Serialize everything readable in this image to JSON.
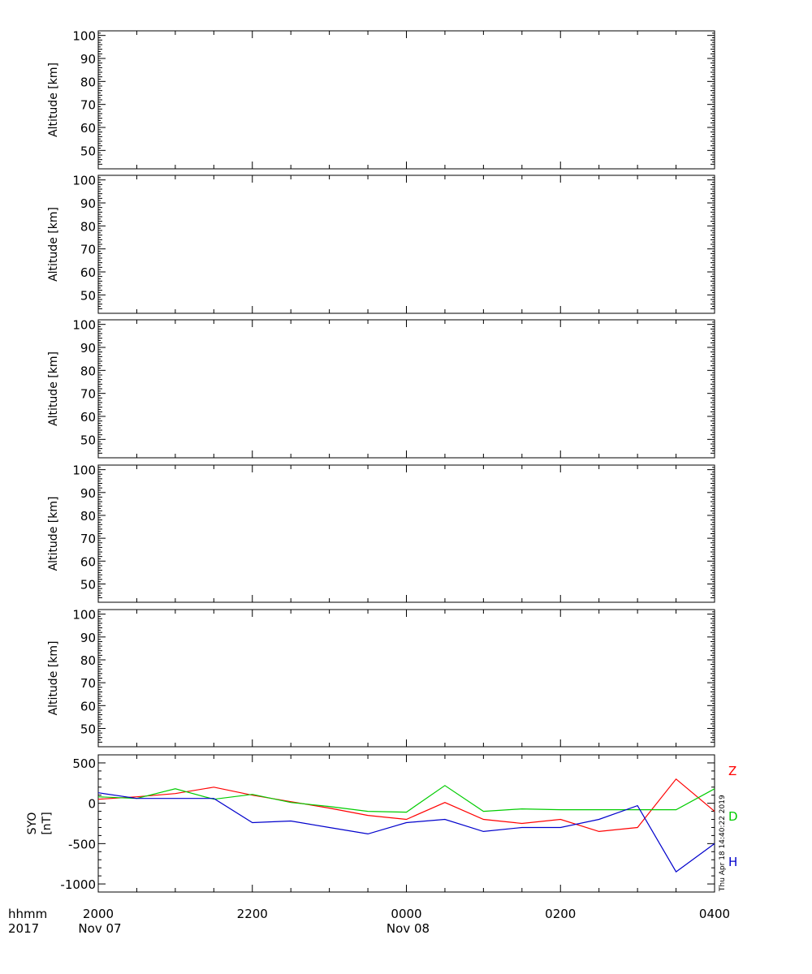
{
  "chart_data": [
    {
      "type": "heatmap",
      "ylabel": "Altitude [km]",
      "ylim": [
        42,
        102
      ],
      "yticks": [
        50,
        60,
        70,
        80,
        90,
        100
      ],
      "grid": false
    },
    {
      "type": "heatmap",
      "ylabel": "Altitude [km]",
      "ylim": [
        42,
        102
      ],
      "yticks": [
        50,
        60,
        70,
        80,
        90,
        100
      ],
      "grid": false
    },
    {
      "type": "heatmap",
      "ylabel": "Altitude [km]",
      "ylim": [
        42,
        102
      ],
      "yticks": [
        50,
        60,
        70,
        80,
        90,
        100
      ],
      "grid": false
    },
    {
      "type": "heatmap",
      "ylabel": "Altitude [km]",
      "ylim": [
        42,
        102
      ],
      "yticks": [
        50,
        60,
        70,
        80,
        90,
        100
      ],
      "grid": false
    },
    {
      "type": "heatmap",
      "ylabel": "Altitude [km]",
      "ylim": [
        42,
        102
      ],
      "yticks": [
        50,
        60,
        70,
        80,
        90,
        100
      ],
      "grid": false
    },
    {
      "type": "line",
      "ylabel": "SYO\n[nT]",
      "ylim": [
        -1100,
        600
      ],
      "yticks": [
        500,
        0,
        -500,
        -1000
      ],
      "grid": false,
      "x": [
        "2000",
        "2030",
        "2100",
        "2130",
        "2200",
        "2230",
        "2300",
        "2330",
        "0000",
        "0030",
        "0100",
        "0130",
        "0200",
        "0230",
        "0300",
        "0330",
        "0400"
      ],
      "series": [
        {
          "name": "Z",
          "color": "#ff0000",
          "values": [
            50,
            80,
            120,
            200,
            100,
            20,
            -60,
            -150,
            -200,
            10,
            -200,
            -250,
            -200,
            -350,
            -300,
            300,
            -100
          ]
        },
        {
          "name": "D",
          "color": "#00cc00",
          "values": [
            80,
            60,
            180,
            50,
            110,
            10,
            -40,
            -100,
            -110,
            220,
            -100,
            -70,
            -80,
            -80,
            -80,
            -80,
            180
          ]
        },
        {
          "name": "H",
          "color": "#0000cc",
          "values": [
            130,
            60,
            60,
            60,
            -240,
            -220,
            -300,
            -380,
            -240,
            -200,
            -350,
            -300,
            -300,
            -200,
            -30,
            -850,
            -500
          ]
        }
      ]
    }
  ],
  "x_axis": {
    "row_label": "hhmm",
    "year_label": "2017",
    "ticks": [
      "2000",
      "2200",
      "0000",
      "0200",
      "0400"
    ],
    "dates": [
      "Nov 07",
      "Nov 08"
    ]
  },
  "timestamp": "Thu Apr 18 14:40:22 2019"
}
